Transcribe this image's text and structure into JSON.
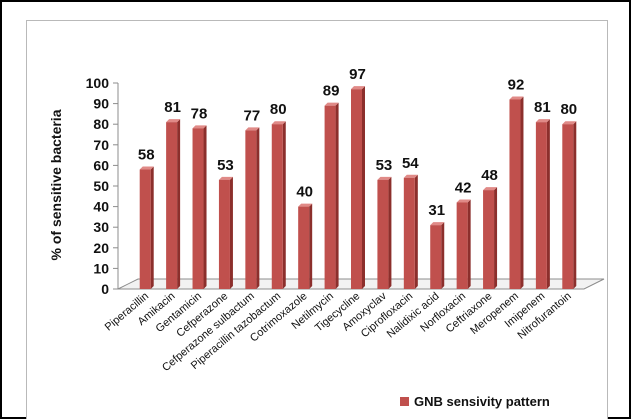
{
  "chart_data": {
    "type": "bar",
    "ylabel": "% of sensitive bacteria",
    "xlabel": "",
    "ylim": [
      0,
      100
    ],
    "yticks": [
      0,
      10,
      20,
      30,
      40,
      50,
      60,
      70,
      80,
      90,
      100
    ],
    "categories": [
      "Piperacillin",
      "Amikacin",
      "Gentamicin",
      "Cefperazone",
      "Cefperazone sulbactum",
      "Piperacillin tazobactum",
      "Cotrimoxazole",
      "Netilmycin",
      "Tigecycline",
      "Amoxyclav",
      "Ciprofloxacin",
      "Nalidixic acid",
      "Norfloxacin",
      "Ceftriaxone",
      "Meropenem",
      "Imipenem",
      "Nitrofurantoin"
    ],
    "series": [
      {
        "name": "GNB sensivity pattern",
        "values": [
          58,
          81,
          78,
          53,
          77,
          80,
          40,
          89,
          97,
          53,
          54,
          31,
          42,
          48,
          92,
          81,
          80
        ]
      }
    ],
    "grid": false,
    "legend": "bottom-right",
    "colors": {
      "bar_front": "#c0504d",
      "bar_side": "#8c2f2c",
      "bar_top": "#e08a87",
      "legend": "#c0504d"
    }
  }
}
